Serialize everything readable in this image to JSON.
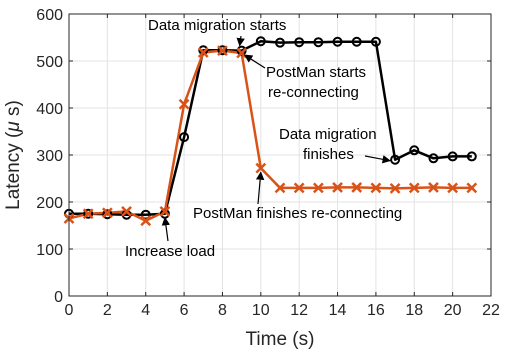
{
  "chart_data": {
    "type": "line",
    "title": "",
    "xlabel": "Time (s)",
    "ylabel_prefix": "Latency (",
    "ylabel_mu": "μ",
    "ylabel_suffix": " s)",
    "xlim": [
      0,
      22
    ],
    "ylim": [
      0,
      600
    ],
    "xticks": [
      0,
      2,
      4,
      6,
      8,
      10,
      12,
      14,
      16,
      18,
      20,
      22
    ],
    "yticks": [
      0,
      100,
      200,
      300,
      400,
      500,
      600
    ],
    "grid": true,
    "legend": "none",
    "x": [
      0,
      1,
      2,
      3,
      4,
      5,
      6,
      7,
      8,
      9,
      10,
      11,
      12,
      13,
      14,
      15,
      16,
      17,
      18,
      19,
      20,
      21
    ],
    "series": [
      {
        "color": "#000000",
        "marker": "circle",
        "values": [
          175,
          175,
          174,
          173,
          173,
          175,
          338,
          523,
          523,
          522,
          542,
          539,
          540,
          540,
          541,
          541,
          541,
          290,
          310,
          293,
          297,
          297
        ]
      },
      {
        "color": "#D95319",
        "marker": "x",
        "values": [
          165,
          175,
          177,
          180,
          160,
          180,
          408,
          518,
          522,
          517,
          272,
          230,
          230,
          230,
          231,
          231,
          230,
          229,
          230,
          231,
          230,
          230
        ]
      }
    ],
    "annotations": [
      {
        "lines": [
          "Data migration starts"
        ],
        "target_x": 9,
        "target_y": 522
      },
      {
        "lines": [
          "PostMan starts",
          "re-connecting"
        ],
        "target_x": 9,
        "target_y": 517
      },
      {
        "lines": [
          "Data migration",
          "finishes"
        ],
        "target_x": 17,
        "target_y": 290
      },
      {
        "lines": [
          "PostMan finishes re-connecting"
        ],
        "target_x": 10,
        "target_y": 272
      },
      {
        "lines": [
          "Increase load"
        ],
        "target_x": 5,
        "target_y": 175
      }
    ]
  }
}
